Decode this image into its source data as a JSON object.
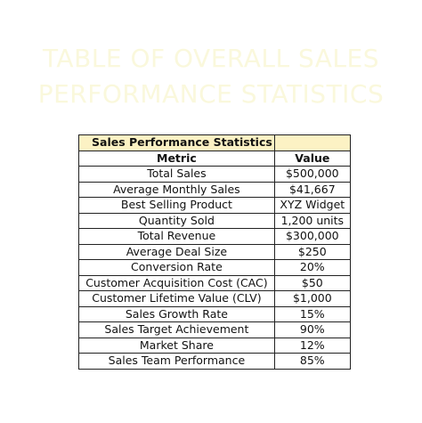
{
  "title": {
    "line1": "TABLE OF OVERALL SALES",
    "line2": "PERFORMANCE STATISTICS"
  },
  "table": {
    "section_header": "Sales Performance Statistics",
    "columns": [
      "Metric",
      "Value"
    ],
    "rows": [
      {
        "metric": "Total Sales",
        "value": "$500,000"
      },
      {
        "metric": "Average Monthly Sales",
        "value": "$41,667"
      },
      {
        "metric": "Best Selling Product",
        "value": "XYZ Widget"
      },
      {
        "metric": "Quantity Sold",
        "value": "1,200 units"
      },
      {
        "metric": "Total Revenue",
        "value": "$300,000"
      },
      {
        "metric": "Average Deal Size",
        "value": "$250"
      },
      {
        "metric": "Conversion Rate",
        "value": "20%"
      },
      {
        "metric": "Customer Acquisition Cost (CAC)",
        "value": "$50"
      },
      {
        "metric": "Customer Lifetime Value (CLV)",
        "value": "$1,000"
      },
      {
        "metric": "Sales Growth Rate",
        "value": "15%"
      },
      {
        "metric": "Sales Target Achievement",
        "value": "90%"
      },
      {
        "metric": "Market Share",
        "value": "12%"
      },
      {
        "metric": "Sales Team Performance",
        "value": "85%"
      }
    ]
  },
  "colors": {
    "header_fill": "#fcf2c4",
    "title_text": "#faf8dc",
    "border": "#222222"
  }
}
